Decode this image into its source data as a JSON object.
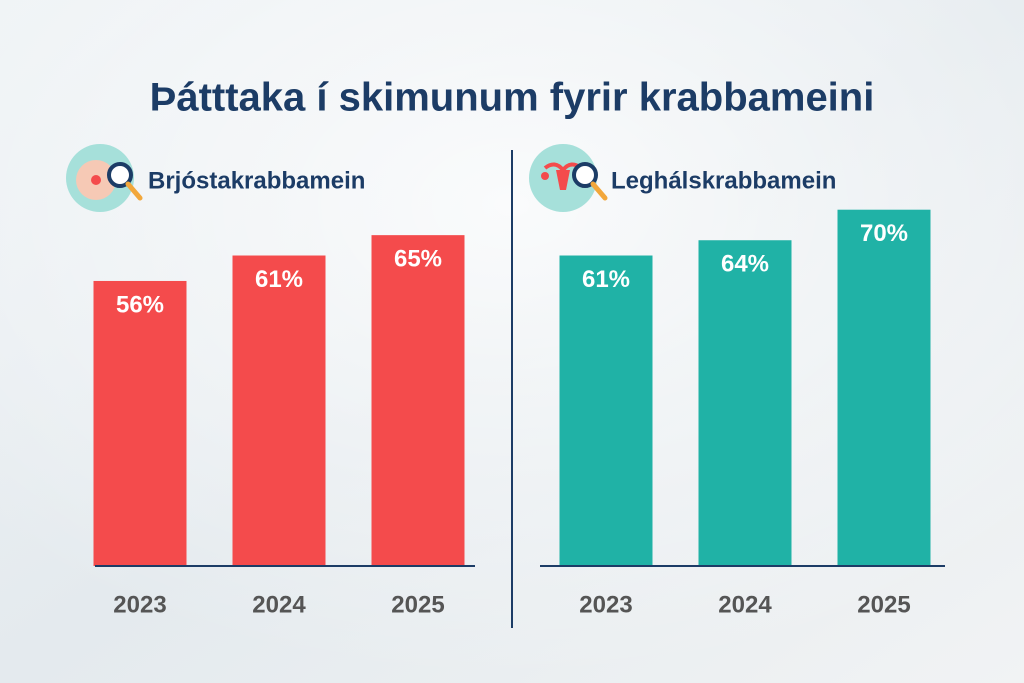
{
  "title": "Þátttaka í skimunum fyrir krabbameini",
  "chart_data": [
    {
      "type": "bar",
      "title": "Brjóstakrabbamein",
      "categories": [
        "2023",
        "2024",
        "2025"
      ],
      "values": [
        56,
        61,
        65
      ],
      "value_labels": [
        "56%",
        "61%",
        "65%"
      ],
      "color": "#f44b4c"
    },
    {
      "type": "bar",
      "title": "Leghálskrabbamein",
      "categories": [
        "2023",
        "2024",
        "2025"
      ],
      "values": [
        61,
        64,
        70
      ],
      "value_labels": [
        "61%",
        "64%",
        "70%"
      ],
      "color": "#20b2a6"
    }
  ]
}
